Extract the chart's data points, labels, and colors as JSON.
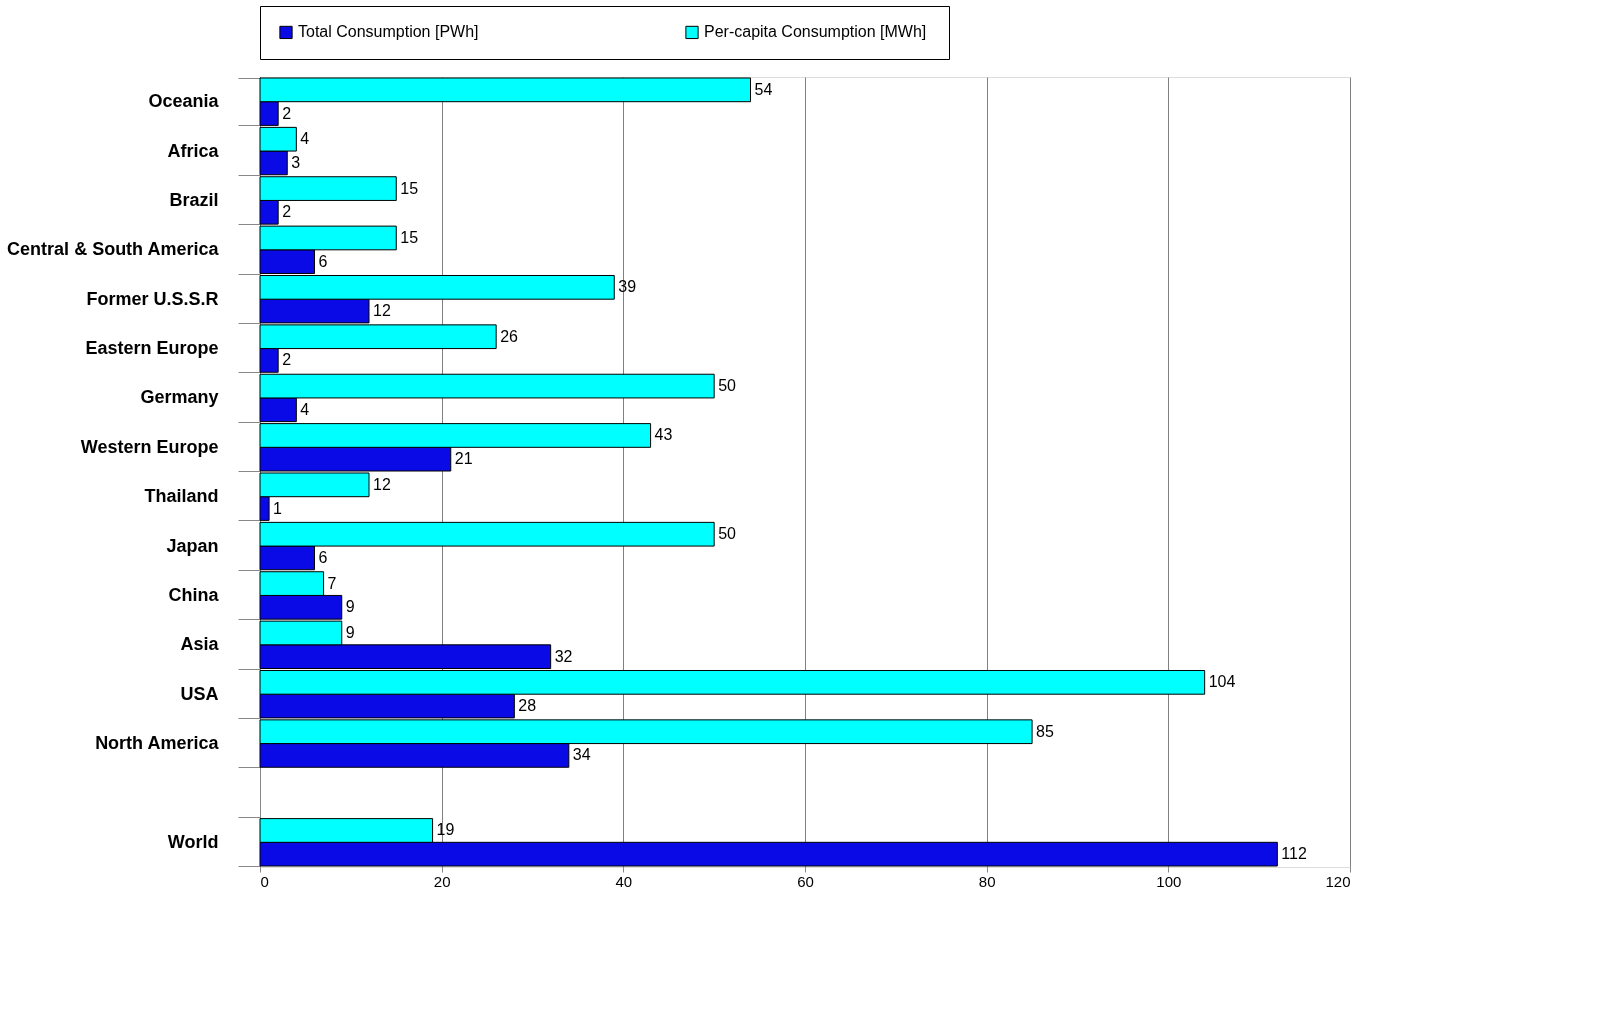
{
  "chart_data": {
    "type": "bar",
    "orientation": "horizontal",
    "categories": [
      "Oceania",
      "Africa",
      "Brazil",
      "Central & South America",
      "Former U.S.S.R",
      "Eastern Europe",
      "Germany",
      "Western Europe",
      "Thailand",
      "Japan",
      "China",
      "Asia",
      "USA",
      "North America",
      null,
      "World"
    ],
    "series": [
      {
        "name": "Total Consumption  [PWh]",
        "color": "#0a0ae6",
        "values": [
          2,
          3,
          2,
          6,
          12,
          2,
          4,
          21,
          1,
          6,
          9,
          32,
          28,
          34,
          null,
          112
        ]
      },
      {
        "name": "Per-capita Consumption  [MWh]",
        "color": "#00ffff",
        "values": [
          54,
          4,
          15,
          15,
          39,
          26,
          50,
          43,
          12,
          50,
          7,
          9,
          104,
          85,
          null,
          19
        ]
      }
    ],
    "xlim": [
      0,
      120
    ],
    "xticks": [
      0,
      20,
      40,
      60,
      80,
      100,
      120
    ],
    "grid": "x",
    "legend": "top",
    "data_labels": true
  }
}
